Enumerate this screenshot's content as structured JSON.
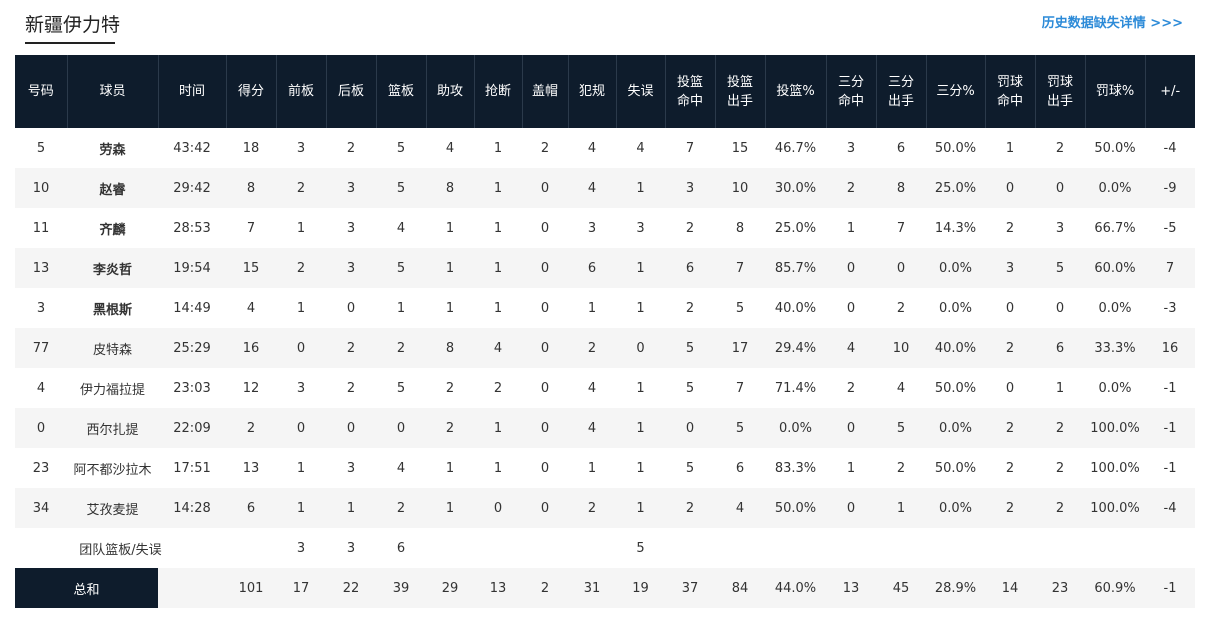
{
  "header": {
    "team_name": "新疆伊力特",
    "history_link": "历史数据缺失详情 >>>"
  },
  "table": {
    "columns": [
      "号码",
      "球员",
      "时间",
      "得分",
      "前板",
      "后板",
      "篮板",
      "助攻",
      "抢断",
      "盖帽",
      "犯规",
      "失误",
      "投篮\n命中",
      "投篮\n出手",
      "投篮%",
      "三分\n命中",
      "三分\n出手",
      "三分%",
      "罚球\n命中",
      "罚球\n出手",
      "罚球%",
      "+/-"
    ],
    "rows": [
      {
        "starter": true,
        "cells": [
          "5",
          "劳森",
          "43:42",
          "18",
          "3",
          "2",
          "5",
          "4",
          "1",
          "2",
          "4",
          "4",
          "7",
          "15",
          "46.7%",
          "3",
          "6",
          "50.0%",
          "1",
          "2",
          "50.0%",
          "-4"
        ]
      },
      {
        "starter": true,
        "cells": [
          "10",
          "赵睿",
          "29:42",
          "8",
          "2",
          "3",
          "5",
          "8",
          "1",
          "0",
          "4",
          "1",
          "3",
          "10",
          "30.0%",
          "2",
          "8",
          "25.0%",
          "0",
          "0",
          "0.0%",
          "-9"
        ]
      },
      {
        "starter": true,
        "cells": [
          "11",
          "齐麟",
          "28:53",
          "7",
          "1",
          "3",
          "4",
          "1",
          "1",
          "0",
          "3",
          "3",
          "2",
          "8",
          "25.0%",
          "1",
          "7",
          "14.3%",
          "2",
          "3",
          "66.7%",
          "-5"
        ]
      },
      {
        "starter": true,
        "cells": [
          "13",
          "李炎哲",
          "19:54",
          "15",
          "2",
          "3",
          "5",
          "1",
          "1",
          "0",
          "6",
          "1",
          "6",
          "7",
          "85.7%",
          "0",
          "0",
          "0.0%",
          "3",
          "5",
          "60.0%",
          "7"
        ]
      },
      {
        "starter": true,
        "cells": [
          "3",
          "黑根斯",
          "14:49",
          "4",
          "1",
          "0",
          "1",
          "1",
          "1",
          "0",
          "1",
          "1",
          "2",
          "5",
          "40.0%",
          "0",
          "2",
          "0.0%",
          "0",
          "0",
          "0.0%",
          "-3"
        ]
      },
      {
        "starter": false,
        "cells": [
          "77",
          "皮特森",
          "25:29",
          "16",
          "0",
          "2",
          "2",
          "8",
          "4",
          "0",
          "2",
          "0",
          "5",
          "17",
          "29.4%",
          "4",
          "10",
          "40.0%",
          "2",
          "6",
          "33.3%",
          "16"
        ]
      },
      {
        "starter": false,
        "cells": [
          "4",
          "伊力福拉提",
          "23:03",
          "12",
          "3",
          "2",
          "5",
          "2",
          "2",
          "0",
          "4",
          "1",
          "5",
          "7",
          "71.4%",
          "2",
          "4",
          "50.0%",
          "0",
          "1",
          "0.0%",
          "-1"
        ]
      },
      {
        "starter": false,
        "cells": [
          "0",
          "西尔扎提",
          "22:09",
          "2",
          "0",
          "0",
          "0",
          "2",
          "1",
          "0",
          "4",
          "1",
          "0",
          "5",
          "0.0%",
          "0",
          "5",
          "0.0%",
          "2",
          "2",
          "100.0%",
          "-1"
        ]
      },
      {
        "starter": false,
        "cells": [
          "23",
          "阿不都沙拉木",
          "17:51",
          "13",
          "1",
          "3",
          "4",
          "1",
          "1",
          "0",
          "1",
          "1",
          "5",
          "6",
          "83.3%",
          "1",
          "2",
          "50.0%",
          "2",
          "2",
          "100.0%",
          "-1"
        ]
      },
      {
        "starter": false,
        "cells": [
          "34",
          "艾孜麦提",
          "14:28",
          "6",
          "1",
          "1",
          "2",
          "1",
          "0",
          "0",
          "2",
          "1",
          "2",
          "4",
          "50.0%",
          "0",
          "1",
          "0.0%",
          "2",
          "2",
          "100.0%",
          "-4"
        ]
      }
    ],
    "team_row": {
      "label": "团队篮板/失误",
      "offensive_reb": "3",
      "defensive_reb": "3",
      "rebounds": "6",
      "turnovers": "5"
    },
    "total_row": {
      "label": "总和",
      "cells": [
        "",
        "101",
        "17",
        "22",
        "39",
        "29",
        "13",
        "2",
        "31",
        "19",
        "37",
        "84",
        "44.0%",
        "13",
        "45",
        "28.9%",
        "14",
        "23",
        "60.9%",
        "-1"
      ]
    }
  }
}
